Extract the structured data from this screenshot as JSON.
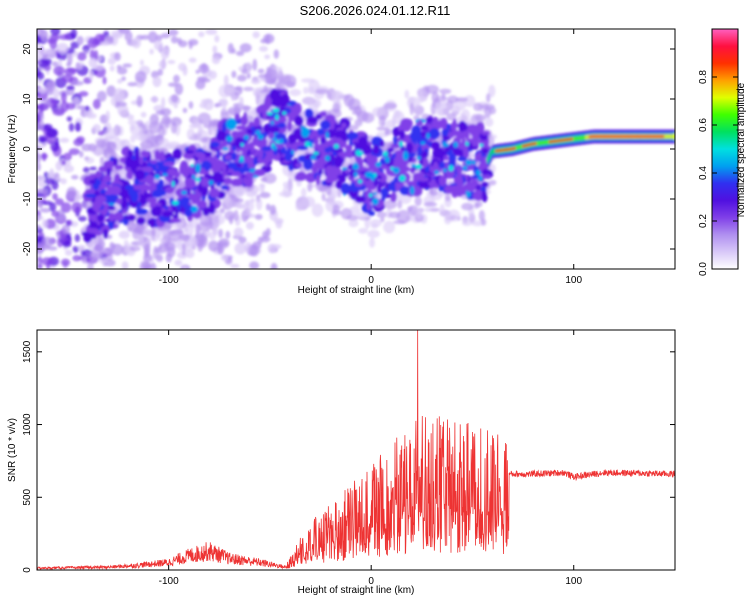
{
  "title": "S206.2026.024.01.12.R11",
  "chart_data": [
    {
      "type": "heatmap",
      "name": "spectrogram",
      "xlabel": "Height of straight line (km)",
      "ylabel": "Frequency (Hz)",
      "xlim": [
        -165,
        150
      ],
      "ylim": [
        -24,
        24
      ],
      "xticks": [
        -100,
        0,
        100
      ],
      "yticks": [
        -20,
        -10,
        0,
        10,
        20
      ],
      "colorbar": {
        "label": "Normalized spectral amplitude",
        "range": [
          0,
          1
        ],
        "ticks": [
          0.0,
          0.2,
          0.4,
          0.6,
          0.8
        ],
        "tick_labels": [
          "0.0",
          "0.2",
          "0.4",
          "0.6",
          "0.8"
        ],
        "colors": [
          "#ffffff",
          "#d8c8f8",
          "#b090f0",
          "#8040e8",
          "#5010e0",
          "#3030f0",
          "#00a0f0",
          "#00e0e0",
          "#00e060",
          "#40ff00",
          "#e0ff00",
          "#ffa000",
          "#ff3000",
          "#ff1040",
          "#ff60c0"
        ]
      },
      "ridge": [
        {
          "x": -135,
          "f": -11
        },
        {
          "x": -120,
          "f": -7
        },
        {
          "x": -105,
          "f": -8
        },
        {
          "x": -90,
          "f": -7
        },
        {
          "x": -80,
          "f": -6
        },
        {
          "x": -72,
          "f": -1
        },
        {
          "x": -60,
          "f": 0
        },
        {
          "x": -45,
          "f": 5
        },
        {
          "x": -35,
          "f": 1
        },
        {
          "x": -20,
          "f": 0
        },
        {
          "x": -10,
          "f": -2
        },
        {
          "x": 0,
          "f": -6
        },
        {
          "x": 15,
          "f": -2
        },
        {
          "x": 30,
          "f": -1
        },
        {
          "x": 45,
          "f": -2
        },
        {
          "x": 57,
          "f": -3
        },
        {
          "x": 60,
          "f": -0.5
        },
        {
          "x": 70,
          "f": 0
        },
        {
          "x": 80,
          "f": 1
        },
        {
          "x": 90,
          "f": 1.5
        },
        {
          "x": 100,
          "f": 2
        },
        {
          "x": 110,
          "f": 2.5
        },
        {
          "x": 130,
          "f": 2.5
        },
        {
          "x": 150,
          "f": 2.5
        }
      ]
    },
    {
      "type": "line",
      "name": "snr",
      "xlabel": "Height of straight line (km)",
      "ylabel": "SNR (10 * v/v)",
      "xlim": [
        -165,
        150
      ],
      "ylim": [
        0,
        1650
      ],
      "xticks": [
        -100,
        0,
        100
      ],
      "yticks": [
        0,
        500,
        1000,
        1500
      ],
      "color": "#ee3333",
      "envelope": [
        {
          "x": -165,
          "y": 20
        },
        {
          "x": -130,
          "y": 30
        },
        {
          "x": -115,
          "y": 50
        },
        {
          "x": -100,
          "y": 80
        },
        {
          "x": -90,
          "y": 150
        },
        {
          "x": -80,
          "y": 200
        },
        {
          "x": -70,
          "y": 120
        },
        {
          "x": -55,
          "y": 80
        },
        {
          "x": -42,
          "y": 30
        },
        {
          "x": -35,
          "y": 180
        },
        {
          "x": -25,
          "y": 300
        },
        {
          "x": -15,
          "y": 380
        },
        {
          "x": -5,
          "y": 520
        },
        {
          "x": 5,
          "y": 600
        },
        {
          "x": 15,
          "y": 700
        },
        {
          "x": 25,
          "y": 800
        },
        {
          "x": 35,
          "y": 780
        },
        {
          "x": 45,
          "y": 760
        },
        {
          "x": 55,
          "y": 720
        },
        {
          "x": 65,
          "y": 700
        },
        {
          "x": 68,
          "y": 660
        },
        {
          "x": 80,
          "y": 660
        },
        {
          "x": 95,
          "y": 670
        },
        {
          "x": 100,
          "y": 640
        },
        {
          "x": 115,
          "y": 670
        },
        {
          "x": 150,
          "y": 660
        }
      ],
      "peak": {
        "x": 23,
        "y": 1660
      }
    }
  ]
}
